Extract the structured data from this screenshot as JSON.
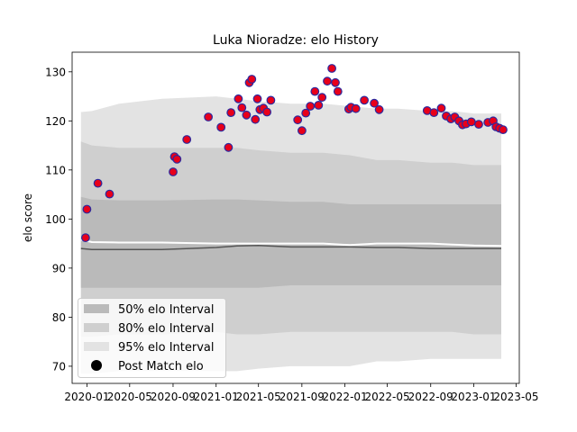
{
  "chart_data": {
    "type": "scatter",
    "title": "Luka Nioradze: elo History",
    "xlabel": "",
    "ylabel": "elo score",
    "xlim": [
      "2019-11-20",
      "2023-05-10"
    ],
    "ylim": [
      66.5,
      134
    ],
    "y_ticks": [
      70,
      80,
      90,
      100,
      110,
      120,
      130
    ],
    "x_ticks": [
      {
        "date": "2020-01-01",
        "label": "2020-01"
      },
      {
        "date": "2020-05-01",
        "label": "2020-05"
      },
      {
        "date": "2020-09-01",
        "label": "2020-09"
      },
      {
        "date": "2021-01-01",
        "label": "2021-01"
      },
      {
        "date": "2021-05-01",
        "label": "2021-05"
      },
      {
        "date": "2021-09-01",
        "label": "2021-09"
      },
      {
        "date": "2022-01-01",
        "label": "2022-01"
      },
      {
        "date": "2022-05-01",
        "label": "2022-05"
      },
      {
        "date": "2022-09-01",
        "label": "2022-09"
      },
      {
        "date": "2023-01-01",
        "label": "2023-01"
      },
      {
        "date": "2023-05-01",
        "label": "2023-05"
      }
    ],
    "band_dates": [
      "2019-12-15",
      "2020-01-15",
      "2020-04-01",
      "2020-08-01",
      "2021-01-01",
      "2021-03-01",
      "2021-05-01",
      "2021-08-01",
      "2021-11-01",
      "2022-01-15",
      "2022-04-01",
      "2022-06-01",
      "2022-09-01",
      "2022-11-01",
      "2023-01-01",
      "2023-03-20"
    ],
    "intervals": [
      {
        "name": "95% elo Interval",
        "color": "#e3e3e3",
        "lower": [
          68.5,
          68.5,
          69,
          69,
          69,
          69,
          69.5,
          70,
          70,
          70,
          71,
          71,
          71.5,
          71.5,
          71.5,
          71.5
        ],
        "upper": [
          121.8,
          122,
          123.5,
          124.5,
          125,
          124.5,
          124,
          123.5,
          123.5,
          123,
          122.5,
          122.5,
          122,
          122,
          121.5,
          121.5
        ]
      },
      {
        "name": "80% elo Interval",
        "color": "#cfcfcf",
        "lower": [
          76,
          76,
          76.5,
          76.5,
          77,
          76.5,
          76.5,
          77,
          77,
          77,
          77,
          77,
          77,
          77,
          76.5,
          76.5
        ],
        "upper": [
          115.8,
          115,
          114.5,
          114.5,
          114.5,
          114.5,
          114,
          113.5,
          113.5,
          113,
          112,
          112,
          111.5,
          111.5,
          111,
          111
        ]
      },
      {
        "name": "50% elo Interval",
        "color": "#bababa",
        "lower": [
          86,
          86,
          86,
          86,
          86,
          86,
          86,
          86.5,
          86.5,
          86.5,
          86.5,
          86.5,
          86.5,
          86.5,
          86.5,
          86.5
        ],
        "upper": [
          104.5,
          104,
          103.8,
          103.8,
          104,
          104,
          103.8,
          103.5,
          103.5,
          103,
          103,
          103,
          103,
          103,
          103,
          103
        ]
      }
    ],
    "median_dark": {
      "color": "#555555",
      "values": [
        94,
        93.8,
        93.8,
        93.8,
        94.2,
        94.5,
        94.6,
        94.3,
        94.3,
        94.3,
        94.2,
        94.2,
        94.0,
        94.0,
        94.0,
        94.0
      ]
    },
    "median_light": {
      "color": "#ffffff",
      "values": [
        95.8,
        95.3,
        95.2,
        95.2,
        95,
        95,
        95,
        95,
        95,
        94.7,
        95,
        95,
        95,
        94.8,
        94.6,
        94.5
      ]
    },
    "points": {
      "name": "Post Match elo",
      "fill": "#e8001a",
      "edge": "#2a2aa0",
      "x": [
        "2019-12-28",
        "2020-01-01",
        "2020-02-01",
        "2020-03-05",
        "2020-09-01",
        "2020-09-05",
        "2020-09-12",
        "2020-10-10",
        "2020-12-10",
        "2021-01-15",
        "2021-02-05",
        "2021-02-12",
        "2021-03-05",
        "2021-03-15",
        "2021-03-28",
        "2021-04-05",
        "2021-04-12",
        "2021-04-22",
        "2021-04-28",
        "2021-05-05",
        "2021-05-15",
        "2021-05-25",
        "2021-06-05",
        "2021-08-20",
        "2021-09-01",
        "2021-09-12",
        "2021-09-25",
        "2021-10-08",
        "2021-10-18",
        "2021-10-28",
        "2021-11-12",
        "2021-11-25",
        "2021-12-05",
        "2021-12-12",
        "2022-01-12",
        "2022-01-18",
        "2022-02-01",
        "2022-02-25",
        "2022-03-25",
        "2022-04-08",
        "2022-08-22",
        "2022-09-10",
        "2022-10-01",
        "2022-10-15",
        "2022-10-28",
        "2022-11-08",
        "2022-11-20",
        "2022-11-30",
        "2022-12-10",
        "2022-12-25",
        "2023-01-15",
        "2023-02-10",
        "2023-02-25",
        "2023-03-05",
        "2023-03-15",
        "2023-03-25"
      ],
      "y": [
        96.2,
        102,
        107.3,
        105.1,
        109.6,
        112.7,
        112.2,
        116.2,
        120.8,
        118.7,
        114.6,
        121.7,
        124.5,
        122.7,
        121.2,
        127.8,
        128.5,
        120.3,
        124.5,
        122.3,
        122.6,
        121.8,
        124.2,
        120.2,
        118,
        121.6,
        123,
        126,
        123.2,
        124.8,
        128.1,
        130.7,
        127.8,
        126,
        122.4,
        122.8,
        122.5,
        124.2,
        123.6,
        122.3,
        122.1,
        121.7,
        122.6,
        121,
        120.4,
        120.8,
        120,
        119.2,
        119.4,
        119.8,
        119.3,
        119.7,
        120,
        118.8,
        118.5,
        118.2
      ]
    }
  }
}
